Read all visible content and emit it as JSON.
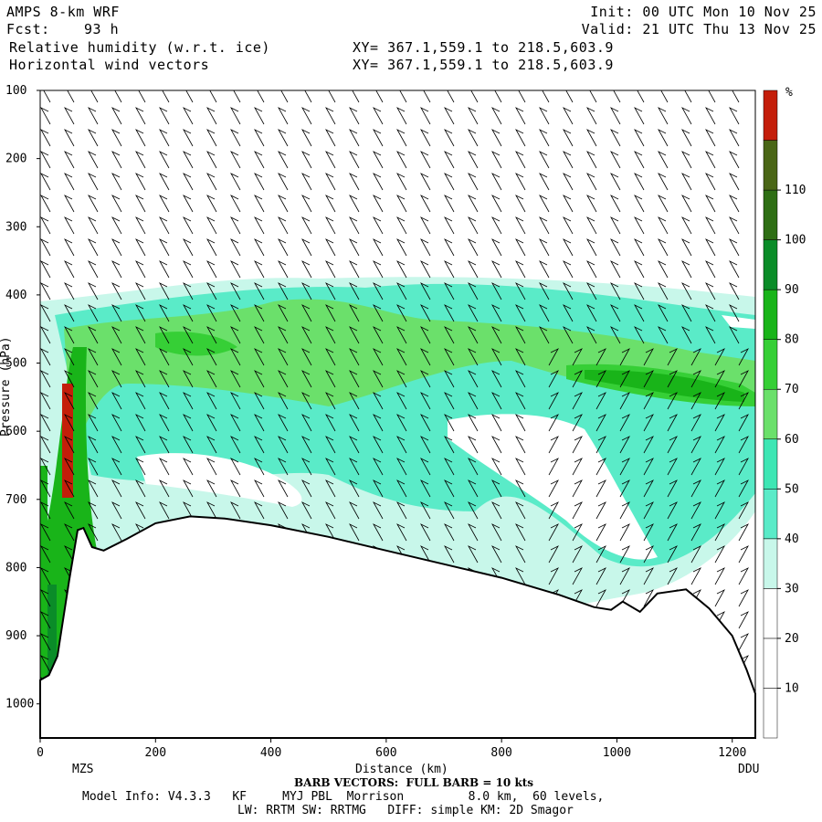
{
  "header": {
    "model": "AMPS 8-km WRF",
    "fcst_label": "Fcst:",
    "fcst_value": "93 h",
    "field1": "Relative humidity (w.r.t. ice)",
    "field2": "Horizontal wind vectors",
    "xy1": "XY= 367.1,559.1 to 218.5,603.9",
    "xy2": "XY= 367.1,559.1 to 218.5,603.9",
    "init": "Init: 00 UTC Mon 10 Nov 25",
    "valid": "Valid: 21 UTC Thu 13 Nov 25"
  },
  "footer": {
    "barb_note": "BARB VECTORS:  FULL BARB = 10 kts",
    "model_info": "Model Info: V4.3.3   KF     MYJ PBL  Morrison         8.0 km,  60 levels,",
    "model_info2": "LW: RRTM SW: RRTMG   DIFF: simple KM: 2D Smagor"
  },
  "colors": {
    "rh_levels": [
      {
        "label": "10",
        "color": "#ffffff"
      },
      {
        "label": "20",
        "color": "#ffffff"
      },
      {
        "label": "30",
        "color": "#ffffff"
      },
      {
        "label": "40",
        "color": "#c8f7ea"
      },
      {
        "label": "50",
        "color": "#5aebc8"
      },
      {
        "label": "60",
        "color": "#3ee6b4"
      },
      {
        "label": "70",
        "color": "#6be06b"
      },
      {
        "label": "80",
        "color": "#36cf36"
      },
      {
        "label": "90",
        "color": "#19b419"
      },
      {
        "label": "100",
        "color": "#0a8c28"
      },
      {
        "label": "110",
        "color": "#2e6e14"
      },
      {
        "label": "",
        "color": "#4a6616"
      },
      {
        "label": "",
        "color": "#c41e0a"
      }
    ],
    "terrain_line": "#000000"
  },
  "chart_data": {
    "type": "cross-section",
    "title": "Relative humidity (w.r.t. ice) and horizontal wind vectors",
    "xlabel": "Distance (km)",
    "ylabel": "Pressure (hPa)",
    "x_start_label": "MZS",
    "x_end_label": "DDU",
    "xlim": [
      0,
      1240
    ],
    "ylim": [
      100,
      1050
    ],
    "x_ticks": [
      "0",
      "200",
      "400",
      "600",
      "800",
      "1000",
      "1200"
    ],
    "y_ticks": [
      "100",
      "200",
      "300",
      "400",
      "500",
      "600",
      "700",
      "800",
      "900",
      "1000"
    ],
    "colorbar_unit": "%",
    "colorbar_ticks": [
      "10",
      "20",
      "30",
      "40",
      "50",
      "60",
      "70",
      "80",
      "90",
      "100",
      "110"
    ],
    "terrain_pressure_profile": [
      {
        "x": 0,
        "p": 965
      },
      {
        "x": 15,
        "p": 958
      },
      {
        "x": 30,
        "p": 930
      },
      {
        "x": 50,
        "p": 820
      },
      {
        "x": 65,
        "p": 745
      },
      {
        "x": 75,
        "p": 742
      },
      {
        "x": 90,
        "p": 770
      },
      {
        "x": 110,
        "p": 775
      },
      {
        "x": 150,
        "p": 758
      },
      {
        "x": 200,
        "p": 735
      },
      {
        "x": 260,
        "p": 725
      },
      {
        "x": 320,
        "p": 728
      },
      {
        "x": 400,
        "p": 738
      },
      {
        "x": 500,
        "p": 755
      },
      {
        "x": 600,
        "p": 775
      },
      {
        "x": 700,
        "p": 795
      },
      {
        "x": 800,
        "p": 815
      },
      {
        "x": 900,
        "p": 840
      },
      {
        "x": 960,
        "p": 858
      },
      {
        "x": 990,
        "p": 862
      },
      {
        "x": 1010,
        "p": 850
      },
      {
        "x": 1040,
        "p": 865
      },
      {
        "x": 1070,
        "p": 838
      },
      {
        "x": 1120,
        "p": 832
      },
      {
        "x": 1160,
        "p": 860
      },
      {
        "x": 1200,
        "p": 900
      },
      {
        "x": 1225,
        "p": 950
      },
      {
        "x": 1240,
        "p": 985
      }
    ]
  }
}
